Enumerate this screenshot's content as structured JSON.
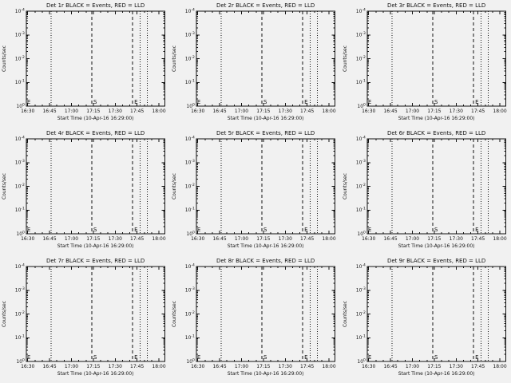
{
  "page": {
    "background": "#f1f1f1",
    "foreground": "#111111"
  },
  "chart_data": {
    "type": "line",
    "layout": "3x3-grid",
    "description": "Nine empty log-scale detector rate panels; vertical dotted observation-boundary lines and dashed flare start/end lines with S and E markers. No series data points are drawn (no events in interval).",
    "common": {
      "ylabel": "Counts/sec",
      "xlabel": "Start Time (10-Apr-16 16:29:00)",
      "x_ticks": [
        "16:30",
        "16:45",
        "17:00",
        "17:15",
        "17:30",
        "17:45",
        "18:00"
      ],
      "x_start": "16:29",
      "x_end": "18:04",
      "y_scale": "log",
      "y_ticks_top_to_bottom": [
        "10^-4",
        "10^-3",
        "10^-2",
        "10^-1",
        "10^0"
      ],
      "grid": false,
      "legend_in_title": true,
      "series": [
        {
          "name": "Events",
          "color": "#000000",
          "points": []
        },
        {
          "name": "LLD",
          "color": "#ff0000",
          "points": []
        }
      ],
      "vlines": [
        {
          "time": "16:46",
          "style": "dotted",
          "label": ""
        },
        {
          "time": "17:14",
          "style": "dashed",
          "label": "S"
        },
        {
          "time": "17:42",
          "style": "dashed",
          "label": "E"
        },
        {
          "time": "17:47",
          "style": "dotted",
          "label": ""
        },
        {
          "time": "17:52",
          "style": "dotted",
          "label": ""
        }
      ],
      "edge_marker": {
        "label": "E",
        "position": "left-edge-bottom"
      }
    },
    "panels": [
      {
        "detector": "Det 1r",
        "title": "Det 1r BLACK = Events, RED = LLD"
      },
      {
        "detector": "Det 2r",
        "title": "Det 2r BLACK = Events, RED = LLD"
      },
      {
        "detector": "Det 3r",
        "title": "Det 3r BLACK = Events, RED = LLD"
      },
      {
        "detector": "Det 4r",
        "title": "Det 4r BLACK = Events, RED = LLD"
      },
      {
        "detector": "Det 5r",
        "title": "Det 5r BLACK = Events, RED = LLD"
      },
      {
        "detector": "Det 6r",
        "title": "Det 6r BLACK = Events, RED = LLD"
      },
      {
        "detector": "Det 7r",
        "title": "Det 7r BLACK = Events, RED = LLD"
      },
      {
        "detector": "Det 8r",
        "title": "Det 8r BLACK = Events, RED = LLD"
      },
      {
        "detector": "Det 9r",
        "title": "Det 9r BLACK = Events, RED = LLD"
      }
    ]
  }
}
